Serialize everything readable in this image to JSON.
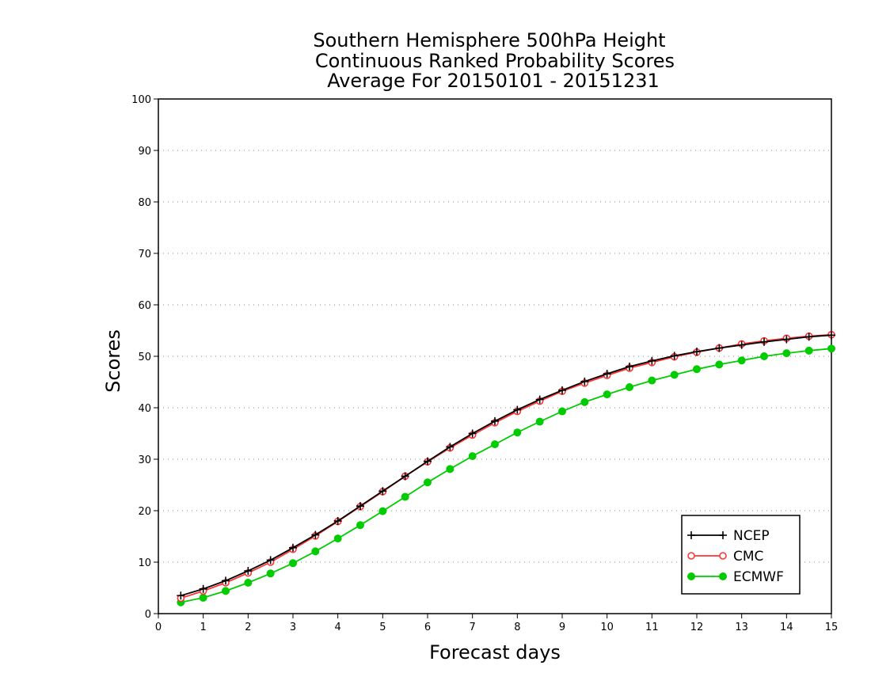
{
  "chart_data": {
    "type": "line",
    "title_lines": [
      "Southern Hemisphere 500hPa Height",
      "Continuous Ranked Probability Scores",
      "Average For 20150101 - 20151231"
    ],
    "xlabel": "Forecast days",
    "ylabel": "Scores",
    "xlim": [
      0,
      15
    ],
    "ylim": [
      0,
      100
    ],
    "x_ticks": [
      0,
      1,
      2,
      3,
      4,
      5,
      6,
      7,
      8,
      9,
      10,
      11,
      12,
      13,
      14,
      15
    ],
    "y_ticks": [
      0,
      10,
      20,
      30,
      40,
      50,
      60,
      70,
      80,
      90,
      100
    ],
    "grid": "horizontal dotted",
    "legend_position": "bottom-right",
    "x": [
      0.5,
      1,
      1.5,
      2,
      2.5,
      3,
      3.5,
      4,
      4.5,
      5,
      5.5,
      6,
      6.5,
      7,
      7.5,
      8,
      8.5,
      9,
      9.5,
      10,
      10.5,
      11,
      11.5,
      12,
      12.5,
      13,
      13.5,
      14,
      14.5,
      15
    ],
    "series": [
      {
        "name": "NCEP",
        "color": "#000000",
        "marker": "plus",
        "values": [
          3.5,
          4.8,
          6.4,
          8.3,
          10.4,
          12.8,
          15.3,
          18.0,
          20.9,
          23.8,
          26.7,
          29.6,
          32.4,
          35.0,
          37.4,
          39.6,
          41.6,
          43.4,
          45.1,
          46.6,
          48.0,
          49.1,
          50.1,
          50.9,
          51.6,
          52.2,
          52.8,
          53.3,
          53.8,
          54.1
        ]
      },
      {
        "name": "CMC",
        "color": "#ff3333",
        "marker": "open-circle",
        "values": [
          3.0,
          4.4,
          6.0,
          7.9,
          10.0,
          12.5,
          15.1,
          17.9,
          20.8,
          23.7,
          26.7,
          29.5,
          32.2,
          34.7,
          37.1,
          39.3,
          41.3,
          43.2,
          44.8,
          46.3,
          47.7,
          48.8,
          49.9,
          50.8,
          51.6,
          52.4,
          53.0,
          53.5,
          53.9,
          54.2
        ]
      },
      {
        "name": "ECMWF",
        "color": "#00cc00",
        "marker": "filled-circle",
        "values": [
          2.2,
          3.1,
          4.4,
          6.0,
          7.8,
          9.8,
          12.1,
          14.6,
          17.2,
          19.9,
          22.7,
          25.5,
          28.1,
          30.6,
          32.9,
          35.2,
          37.3,
          39.3,
          41.1,
          42.6,
          44.0,
          45.3,
          46.4,
          47.5,
          48.4,
          49.2,
          50.0,
          50.6,
          51.1,
          51.5
        ]
      }
    ]
  }
}
